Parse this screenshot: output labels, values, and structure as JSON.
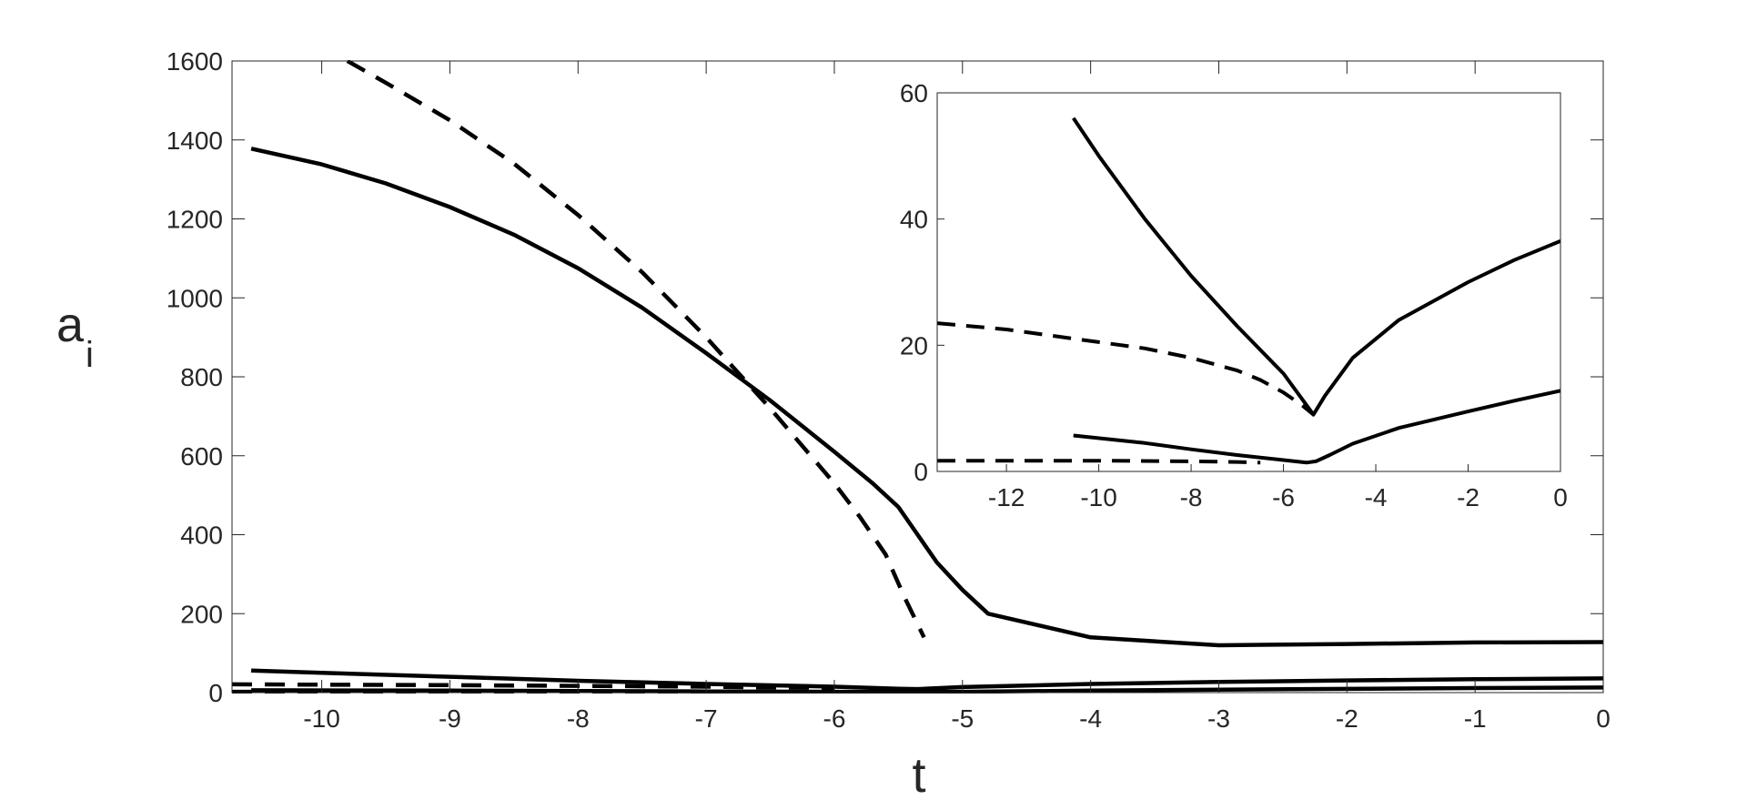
{
  "chart_data": [
    {
      "type": "line",
      "title": "",
      "xlabel": "t",
      "ylabel_base": "a",
      "ylabel_sub": "i",
      "xlim": [
        -10.7,
        0
      ],
      "ylim": [
        0,
        1600
      ],
      "xticks": [
        -10,
        -9,
        -8,
        -7,
        -6,
        -5,
        -4,
        -3,
        -2,
        -1,
        0
      ],
      "yticks": [
        0,
        200,
        400,
        600,
        800,
        1000,
        1200,
        1400,
        1600
      ],
      "xtick_labels": [
        "-10",
        "-9",
        "-8",
        "-7",
        "-6",
        "-5",
        "-4",
        "-3",
        "-2",
        "-1",
        "0"
      ],
      "ytick_labels": [
        "0",
        "200",
        "400",
        "600",
        "800",
        "1000",
        "1200",
        "1400",
        "1600"
      ],
      "grid": false,
      "color": "#000000",
      "series": [
        {
          "style": "solid",
          "x": [
            -10.55,
            -10,
            -9.5,
            -9,
            -8.5,
            -8,
            -7.5,
            -7,
            -6.5,
            -6,
            -5.7,
            -5.5,
            -5.35,
            -5.2,
            -5,
            -4.8,
            -4,
            -3,
            -2,
            -1,
            0
          ],
          "y": [
            1378,
            1338,
            1290,
            1230,
            1160,
            1075,
            975,
            860,
            740,
            610,
            530,
            470,
            400,
            330,
            260,
            200,
            140,
            120,
            123,
            127,
            128
          ]
        },
        {
          "style": "dashed",
          "x": [
            -9.8,
            -9.5,
            -9,
            -8.5,
            -8,
            -7.5,
            -7,
            -6.5,
            -6,
            -5.8,
            -5.6,
            -5.45,
            -5.3
          ],
          "y": [
            1600,
            1545,
            1450,
            1340,
            1210,
            1065,
            900,
            720,
            530,
            445,
            350,
            240,
            140
          ]
        },
        {
          "style": "solid",
          "x": [
            -10.55,
            -10,
            -9,
            -8,
            -7,
            -6,
            -5.5,
            -5.35,
            -5,
            -4,
            -3,
            -2,
            -1,
            0
          ],
          "y": [
            56,
            50,
            40,
            30,
            22,
            15,
            10,
            9,
            14,
            22,
            27,
            31,
            34,
            36
          ]
        },
        {
          "style": "solid",
          "x": [
            -10.55,
            -9,
            -8,
            -7,
            -6,
            -5.5,
            -5.35,
            -5,
            -4,
            -3,
            -2,
            -1,
            0
          ],
          "y": [
            6,
            5,
            4,
            3,
            2,
            1.5,
            1.3,
            2,
            5,
            7.5,
            9.5,
            11.5,
            13
          ]
        },
        {
          "style": "dashed",
          "x": [
            -10.7,
            -10,
            -9,
            -8,
            -7,
            -6.5,
            -6
          ],
          "y": [
            21,
            20,
            19,
            17,
            15,
            13,
            12
          ]
        },
        {
          "style": "dashed",
          "x": [
            -10.7,
            -10,
            -9,
            -8,
            -7,
            -6.5,
            -6
          ],
          "y": [
            2,
            2,
            2,
            1.9,
            1.8,
            1.7,
            1.6
          ]
        }
      ]
    },
    {
      "type": "line",
      "title": "",
      "xlabel": "",
      "ylabel": "",
      "xlim": [
        -13.5,
        0
      ],
      "ylim": [
        0,
        60
      ],
      "xticks": [
        -12,
        -10,
        -8,
        -6,
        -4,
        -2,
        0
      ],
      "yticks": [
        0,
        20,
        40,
        60
      ],
      "xtick_labels": [
        "-12",
        "-10",
        "-8",
        "-6",
        "-4",
        "-2",
        "0"
      ],
      "ytick_labels": [
        "0",
        "20",
        "40",
        "60"
      ],
      "grid": false,
      "color": "#000000",
      "series": [
        {
          "style": "solid",
          "x": [
            -10.55,
            -10,
            -9,
            -8,
            -7,
            -6,
            -5.6,
            -5.35,
            -5.1,
            -4.5,
            -3.5,
            -2,
            -1,
            0
          ],
          "y": [
            56,
            50,
            40,
            31,
            23,
            15.5,
            11.5,
            9,
            12,
            18,
            24,
            30,
            33.5,
            36.5
          ]
        },
        {
          "style": "dashed",
          "x": [
            -13.5,
            -12,
            -10,
            -9,
            -8,
            -7,
            -6.5,
            -6,
            -5.6,
            -5.35
          ],
          "y": [
            23.5,
            22.5,
            20.5,
            19.5,
            18,
            16,
            14.5,
            12.5,
            10.5,
            9
          ]
        },
        {
          "style": "solid",
          "x": [
            -10.55,
            -9,
            -8,
            -7,
            -6,
            -5.5,
            -5.3,
            -5,
            -4.5,
            -3.5,
            -2,
            -1,
            0
          ],
          "y": [
            5.7,
            4.5,
            3.5,
            2.6,
            1.8,
            1.4,
            1.6,
            2.6,
            4.4,
            6.9,
            9.5,
            11.2,
            12.8
          ]
        },
        {
          "style": "dashed",
          "x": [
            -13.5,
            -12,
            -10,
            -8,
            -7,
            -6.5
          ],
          "y": [
            1.7,
            1.7,
            1.7,
            1.6,
            1.5,
            1.4
          ]
        }
      ]
    }
  ]
}
